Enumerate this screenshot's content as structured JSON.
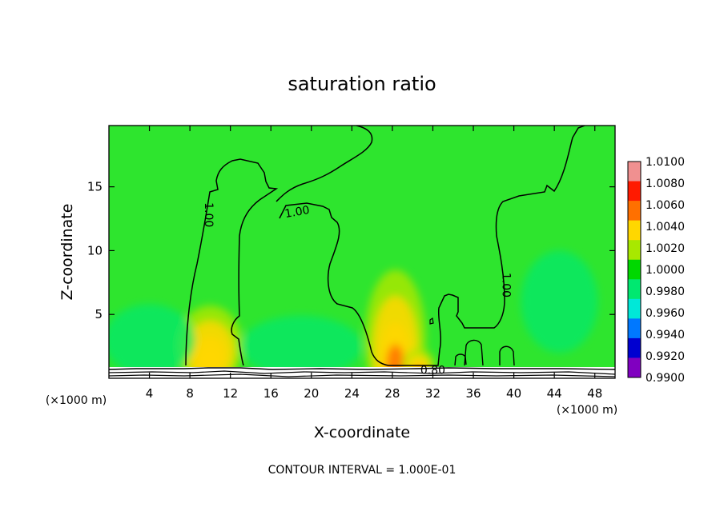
{
  "chart_data": {
    "type": "heatmap",
    "title": "saturation ratio",
    "xlabel": "X-coordinate",
    "ylabel": "Z-coordinate",
    "x_unit": "(×1000 m)",
    "x_unit_right": "(×1000 m)",
    "xlim": [
      0,
      50
    ],
    "ylim": [
      0,
      19.8
    ],
    "x_ticks": [
      "4",
      "8",
      "12",
      "16",
      "20",
      "24",
      "28",
      "32",
      "36",
      "40",
      "44",
      "48"
    ],
    "y_ticks": [
      "5",
      "10",
      "15"
    ],
    "footer": "CONTOUR INTERVAL = 1.000E-01",
    "background_value": 1.0015,
    "colorbar": {
      "labels": [
        "1.0100",
        "1.0080",
        "1.0060",
        "1.0040",
        "1.0020",
        "1.0000",
        "0.9980",
        "0.9960",
        "0.9940",
        "0.9920",
        "0.9900"
      ],
      "colors": [
        "#f09090",
        "#ff1a00",
        "#ff7000",
        "#ffd700",
        "#a8e800",
        "#00d800",
        "#00e870",
        "#00e8d8",
        "#0078ff",
        "#0000d0",
        "#8000c0"
      ]
    },
    "contour_labels": [
      {
        "text": "1.00",
        "x": 9.8,
        "z": 12.8
      },
      {
        "text": "1.00",
        "x": 18.6,
        "z": 13.0
      },
      {
        "text": "1.00",
        "x": 39.2,
        "z": 7.3
      },
      {
        "text": "0.80",
        "x": 32.0,
        "z": 0.6
      }
    ],
    "features": [
      {
        "name": "moist-column-left",
        "x": 10.0,
        "z": 2.5,
        "peak": 1.0045
      },
      {
        "name": "moist-column-center",
        "x": 28.3,
        "z": 3.0,
        "peak": 1.0068
      },
      {
        "name": "moist-column-center-2",
        "x": 30.6,
        "z": 1.0,
        "peak": 1.0055
      },
      {
        "name": "dry-region-left",
        "x": 4.0,
        "z": 3.0,
        "peak": 0.9985
      },
      {
        "name": "dry-region-mid",
        "x": 19.0,
        "z": 2.5,
        "peak": 0.9985
      },
      {
        "name": "dry-region-right",
        "x": 44.5,
        "z": 6.0,
        "peak": 0.9985
      }
    ]
  }
}
